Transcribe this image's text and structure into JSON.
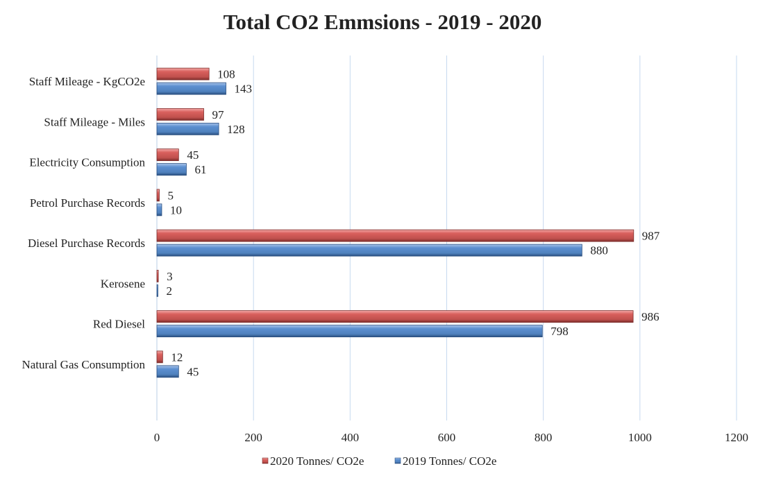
{
  "chart_data": {
    "type": "bar",
    "orientation": "horizontal",
    "title": "Total CO2 Emmsions - 2019 - 2020",
    "categories": [
      "Staff Mileage - KgCO2e",
      "Staff Mileage - Miles",
      "Electricity Consumption",
      "Petrol Purchase Records",
      "Diesel Purchase Records",
      "Kerosene",
      "Red Diesel",
      "Natural Gas Consumption"
    ],
    "series": [
      {
        "name": "2020 Tonnes/ CO2e",
        "color": "#c0504d",
        "values": [
          108,
          97,
          45,
          5,
          987,
          3,
          986,
          12
        ]
      },
      {
        "name": "2019 Tonnes/ CO2e",
        "color": "#4f81bd",
        "values": [
          143,
          128,
          61,
          10,
          880,
          2,
          798,
          45
        ]
      }
    ],
    "xlim": [
      0,
      1200
    ],
    "xticks": [
      0,
      200,
      400,
      600,
      800,
      1000,
      1200
    ],
    "grid": true,
    "legend_position": "bottom",
    "data_labels": true
  }
}
